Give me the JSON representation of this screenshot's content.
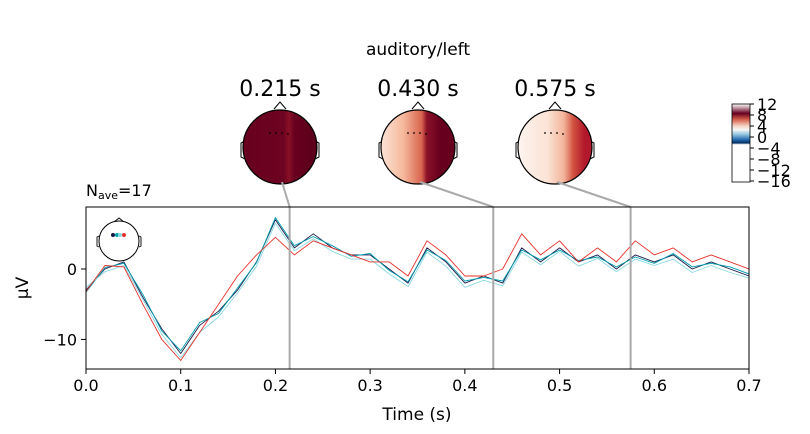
{
  "figure": {
    "title": "auditory/left",
    "nave_prefix": "N",
    "nave_sub": "ave",
    "nave_suffix": "=17"
  },
  "topomaps": [
    {
      "time_label": "0.215 s",
      "time": 0.215,
      "pattern": "strong-positive"
    },
    {
      "time_label": "0.430 s",
      "time": 0.43,
      "pattern": "right-positive"
    },
    {
      "time_label": "0.575 s",
      "time": 0.575,
      "pattern": "weak-right-positive"
    }
  ],
  "colorbar": {
    "tick_labels": [
      "12",
      "8",
      "4",
      "0",
      "−4",
      "−8",
      "−12",
      "−16"
    ],
    "colors": {
      "max": "#67001f",
      "mid": "#f7f7f7",
      "min": "#053061"
    }
  },
  "chart_data": {
    "type": "line",
    "xlabel": "Time (s)",
    "ylabel": "µV",
    "xlim": [
      0.0,
      0.7
    ],
    "ylim": [
      -14.2,
      8.8
    ],
    "xticks": [
      0.0,
      0.1,
      0.2,
      0.3,
      0.4,
      0.5,
      0.6,
      0.7
    ],
    "xtick_labels": [
      "0.0",
      "0.1",
      "0.2",
      "0.3",
      "0.4",
      "0.5",
      "0.6",
      "0.7"
    ],
    "yticks": [
      0,
      -10
    ],
    "ytick_labels": [
      "0",
      "−10"
    ],
    "marker_times": [
      0.215,
      0.43,
      0.575
    ],
    "grid": false,
    "series": [
      {
        "color": "#1a1a4a",
        "x": [
          0,
          0.02,
          0.04,
          0.06,
          0.08,
          0.1,
          0.12,
          0.14,
          0.16,
          0.18,
          0.2,
          0.22,
          0.24,
          0.26,
          0.28,
          0.3,
          0.32,
          0.34,
          0.36,
          0.38,
          0.4,
          0.42,
          0.44,
          0.46,
          0.48,
          0.5,
          0.52,
          0.54,
          0.56,
          0.58,
          0.6,
          0.62,
          0.64,
          0.66,
          0.68,
          0.7
        ],
        "y": [
          -3,
          0,
          1,
          -4,
          -8.5,
          -12,
          -8,
          -6,
          -3,
          1,
          7,
          3,
          5,
          3,
          2,
          2,
          0,
          -2,
          3,
          1,
          -2,
          -1,
          -2,
          3,
          1,
          3,
          1,
          2,
          0,
          2,
          1,
          2,
          0,
          1,
          0,
          -1
        ]
      },
      {
        "color": "#00a0b0",
        "x": [
          0,
          0.02,
          0.04,
          0.06,
          0.08,
          0.1,
          0.12,
          0.14,
          0.16,
          0.18,
          0.2,
          0.22,
          0.24,
          0.26,
          0.28,
          0.3,
          0.32,
          0.34,
          0.36,
          0.38,
          0.4,
          0.42,
          0.44,
          0.46,
          0.48,
          0.5,
          0.52,
          0.54,
          0.56,
          0.58,
          0.6,
          0.62,
          0.64,
          0.66,
          0.68,
          0.7
        ],
        "y": [
          -3.3,
          0.2,
          0.8,
          -3.6,
          -8.8,
          -11.6,
          -7.6,
          -6.3,
          -2.7,
          0.9,
          7.3,
          3.3,
          4.6,
          3.3,
          1.8,
          2.2,
          -0.2,
          -1.8,
          2.7,
          1.2,
          -1.7,
          -1.2,
          -1.7,
          2.7,
          1.3,
          2.7,
          1.2,
          1.7,
          0.3,
          1.7,
          0.8,
          2.2,
          0.3,
          0.8,
          0.3,
          -0.7
        ]
      },
      {
        "color": "#8ad8e0",
        "x": [
          0,
          0.02,
          0.04,
          0.06,
          0.08,
          0.1,
          0.12,
          0.14,
          0.16,
          0.18,
          0.2,
          0.22,
          0.24,
          0.26,
          0.28,
          0.3,
          0.32,
          0.34,
          0.36,
          0.38,
          0.4,
          0.42,
          0.44,
          0.46,
          0.48,
          0.5,
          0.52,
          0.54,
          0.56,
          0.58,
          0.6,
          0.62,
          0.64,
          0.66,
          0.68,
          0.7
        ],
        "y": [
          -2.6,
          -0.4,
          0.5,
          -4.3,
          -9.3,
          -12.6,
          -9,
          -6.8,
          -3.4,
          0.4,
          6.5,
          2.6,
          4.3,
          2.5,
          1.4,
          1.4,
          -0.7,
          -2.5,
          2.4,
          0.4,
          -2.6,
          -1.6,
          -2.4,
          2.4,
          0.6,
          2.5,
          0.4,
          1.5,
          -0.4,
          1.4,
          0.5,
          1.4,
          -0.5,
          0.5,
          -0.5,
          -1.3
        ]
      },
      {
        "color": "#e8302a",
        "x": [
          0,
          0.02,
          0.04,
          0.06,
          0.08,
          0.1,
          0.12,
          0.14,
          0.16,
          0.18,
          0.2,
          0.22,
          0.24,
          0.26,
          0.28,
          0.3,
          0.32,
          0.34,
          0.36,
          0.38,
          0.4,
          0.42,
          0.44,
          0.46,
          0.48,
          0.5,
          0.52,
          0.54,
          0.56,
          0.58,
          0.6,
          0.62,
          0.64,
          0.66,
          0.68,
          0.7
        ],
        "y": [
          -3.2,
          0.5,
          0.3,
          -5,
          -10,
          -13,
          -9,
          -5,
          -1,
          2,
          4.5,
          2,
          4,
          3,
          2,
          1,
          1,
          -1,
          4,
          2,
          -1,
          -1,
          0,
          5,
          2,
          4,
          1,
          3,
          1,
          4,
          2,
          3,
          1,
          2,
          1,
          0
        ]
      }
    ]
  }
}
